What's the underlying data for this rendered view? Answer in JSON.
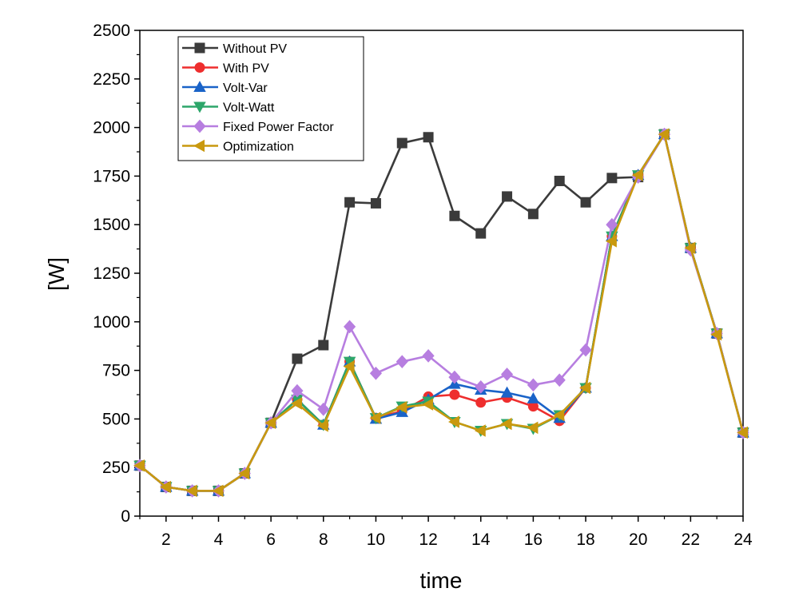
{
  "chart_data": {
    "type": "line",
    "title": "",
    "xlabel": "time",
    "ylabel": "[W]",
    "xlim": [
      1,
      24
    ],
    "ylim": [
      0,
      2500
    ],
    "x_ticks": [
      2,
      4,
      6,
      8,
      10,
      12,
      14,
      16,
      18,
      20,
      22,
      24
    ],
    "y_ticks": [
      0,
      250,
      500,
      750,
      1000,
      1250,
      1500,
      1750,
      2000,
      2250,
      2500
    ],
    "grid": false,
    "legend_position": "top-left",
    "x": [
      1,
      2,
      3,
      4,
      5,
      6,
      7,
      8,
      9,
      10,
      11,
      12,
      13,
      14,
      15,
      16,
      17,
      18,
      19,
      20,
      21,
      22,
      23,
      24
    ],
    "series": [
      {
        "name": "Without PV",
        "color": "#3b3b3b",
        "marker": "square",
        "values": [
          260,
          150,
          130,
          130,
          220,
          480,
          810,
          880,
          1615,
          1610,
          1920,
          1950,
          1545,
          1455,
          1645,
          1555,
          1725,
          1615,
          1740,
          1745,
          1965,
          1380,
          940,
          430
        ]
      },
      {
        "name": "With PV",
        "color": "#ee2e2e",
        "marker": "circle",
        "values": [
          260,
          150,
          130,
          130,
          220,
          480,
          600,
          470,
          795,
          505,
          540,
          615,
          625,
          585,
          610,
          565,
          490,
          660,
          1440,
          1755,
          1965,
          1380,
          940,
          430
        ]
      },
      {
        "name": "Volt-Var",
        "color": "#1a63c8",
        "marker": "triangle-up",
        "values": [
          260,
          150,
          130,
          130,
          220,
          480,
          600,
          470,
          795,
          500,
          535,
          600,
          680,
          650,
          635,
          605,
          505,
          660,
          1440,
          1755,
          1965,
          1380,
          940,
          430
        ]
      },
      {
        "name": "Volt-Watt",
        "color": "#2da66a",
        "marker": "triangle-down",
        "values": [
          260,
          150,
          130,
          130,
          220,
          480,
          600,
          470,
          795,
          505,
          565,
          590,
          485,
          440,
          475,
          450,
          520,
          660,
          1440,
          1755,
          1965,
          1380,
          940,
          430
        ]
      },
      {
        "name": "Fixed Power Factor",
        "color": "#b77ee0",
        "marker": "diamond",
        "values": [
          260,
          150,
          130,
          130,
          220,
          480,
          645,
          550,
          975,
          735,
          795,
          825,
          715,
          665,
          730,
          675,
          700,
          855,
          1500,
          1745,
          1965,
          1370,
          940,
          430
        ]
      },
      {
        "name": "Optimization",
        "color": "#c9990f",
        "marker": "triangle-left",
        "values": [
          260,
          150,
          130,
          130,
          220,
          480,
          580,
          465,
          770,
          505,
          560,
          575,
          485,
          440,
          475,
          455,
          520,
          660,
          1415,
          1755,
          1965,
          1380,
          935,
          430
        ]
      }
    ]
  }
}
